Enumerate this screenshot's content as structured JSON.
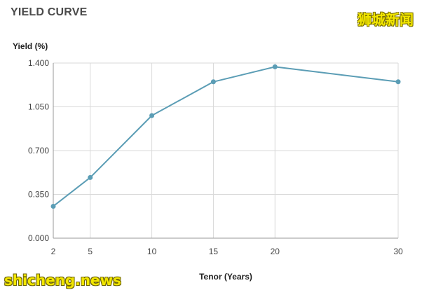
{
  "title": "YIELD CURVE",
  "watermark_top": "狮城新闻",
  "watermark_bottom": "shicheng.news",
  "colors": {
    "line": "#5b9db5",
    "grid": "#d9d9d9",
    "axis": "#999999"
  },
  "chart_data": {
    "type": "line",
    "ylabel": "Yield (%)",
    "xlabel": "Tenor (Years)",
    "x": [
      2,
      5,
      10,
      15,
      20,
      30
    ],
    "y": [
      0.255,
      0.485,
      0.98,
      1.25,
      1.37,
      1.25
    ],
    "xlim": [
      2,
      30
    ],
    "ylim": [
      0,
      1.4
    ],
    "x_ticks": [
      "2",
      "5",
      "10",
      "15",
      "20",
      "30"
    ],
    "y_ticks": [
      "0.000",
      "0.350",
      "0.700",
      "1.050",
      "1.400"
    ],
    "grid": true,
    "legend": false
  }
}
